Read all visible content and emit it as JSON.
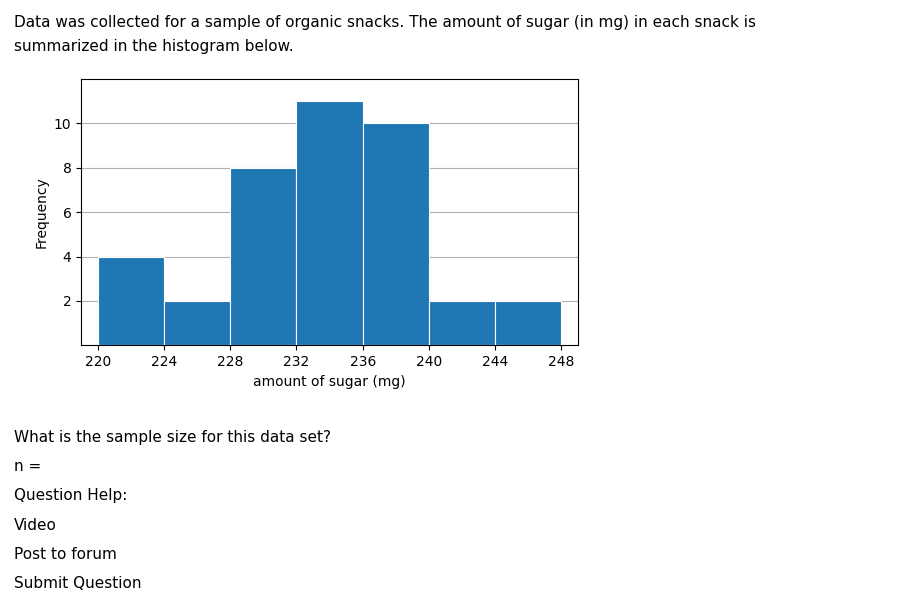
{
  "chart_data": {
    "type": "histogram",
    "title": "Data was collected for a sample of organic snacks. The amount of sugar (in mg) in each snack is",
    "subtitle": "summarized in the histogram below.",
    "x_label": "amount of sugar (mg)",
    "y_label": "Frequency",
    "bins": [
      220,
      224,
      228,
      232,
      236,
      240,
      244,
      248
    ],
    "values": [
      4,
      2,
      8,
      11,
      10,
      2,
      2
    ],
    "xlim": [
      219,
      249
    ],
    "xticks": [
      220,
      224,
      228,
      232,
      236,
      240,
      244,
      248
    ],
    "ylim": [
      0,
      12
    ],
    "yticks": [
      2,
      4,
      6,
      8,
      10
    ],
    "grid": true,
    "annotations": [
      "What is the sample size for this data set?",
      "n =",
      "Question Help:",
      "Video",
      "Post to forum",
      "Submit Question"
    ]
  }
}
